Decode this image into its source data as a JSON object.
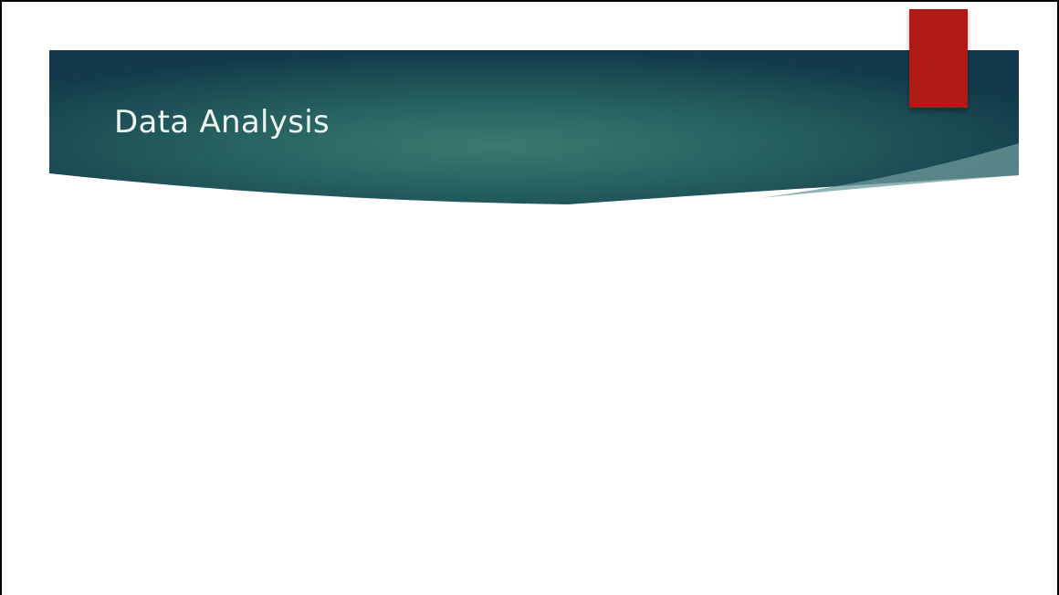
{
  "slide": {
    "title": "Data Analysis"
  },
  "theme": {
    "banner_center": "#3b7a6f",
    "banner_edge": "#123a4a",
    "accent_tab": "#b01a17",
    "title_color": "#eef4f2"
  }
}
